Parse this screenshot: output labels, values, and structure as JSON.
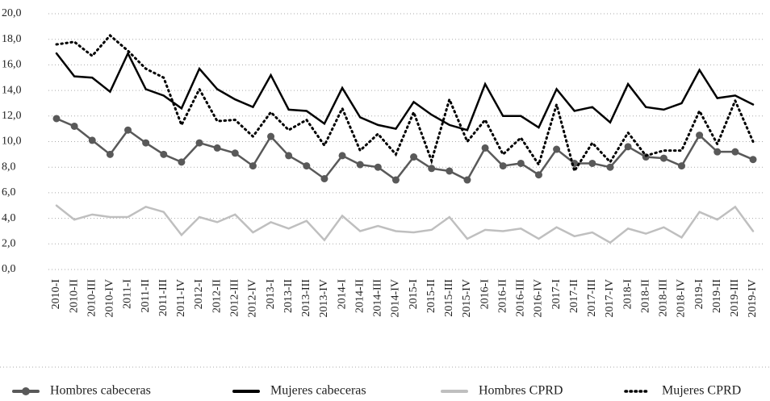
{
  "chart_data": {
    "type": "line",
    "categories": [
      "2010-I",
      "2010-II",
      "2010-III",
      "2010-IV",
      "2011-I",
      "2011-II",
      "2011-III",
      "2011-IV",
      "2012-I",
      "2012-II",
      "2012-III",
      "2012-IV",
      "2013-I",
      "2013-II",
      "2013-III",
      "2013-IV",
      "2014-I",
      "2014-II",
      "2014-III",
      "2014-IV",
      "2015-I",
      "2015-II",
      "2015-III",
      "2015-IV",
      "2016-I",
      "2016-II",
      "2016-III",
      "2016-IV",
      "2017-I",
      "2017-II",
      "2017-III",
      "2017-IV",
      "2018-I",
      "2018-II",
      "2018-III",
      "2018-IV",
      "2019-I",
      "2019-II",
      "2019-III",
      "2019-IV"
    ],
    "series": [
      {
        "name": "Hombres cabeceras",
        "color": "#595959",
        "marker": "circle",
        "line_style": "solid",
        "values": [
          11.8,
          11.2,
          10.1,
          9.0,
          10.9,
          9.9,
          9.0,
          8.4,
          9.9,
          9.5,
          9.1,
          8.1,
          10.4,
          8.9,
          8.1,
          7.1,
          8.9,
          8.2,
          8.0,
          7.0,
          8.8,
          7.9,
          7.7,
          7.0,
          9.5,
          8.1,
          8.3,
          7.4,
          9.4,
          8.3,
          8.3,
          8.0,
          9.6,
          8.8,
          8.7,
          8.1,
          10.5,
          9.2,
          9.2,
          8.6
        ]
      },
      {
        "name": "Mujeres cabeceras",
        "color": "#000000",
        "marker": "none",
        "line_style": "solid",
        "values": [
          16.9,
          15.1,
          15.0,
          13.9,
          16.9,
          14.1,
          13.6,
          12.6,
          15.7,
          14.1,
          13.3,
          12.7,
          15.2,
          12.5,
          12.4,
          11.4,
          14.2,
          11.9,
          11.3,
          11.0,
          13.1,
          12.1,
          11.3,
          10.9,
          14.5,
          12.0,
          12.0,
          11.1,
          14.1,
          12.4,
          12.7,
          11.5,
          14.5,
          12.7,
          12.5,
          13.0,
          15.6,
          13.4,
          13.6,
          12.9
        ]
      },
      {
        "name": "Hombres CPRD",
        "color": "#bfbfbf",
        "marker": "none",
        "line_style": "solid",
        "values": [
          5.0,
          3.9,
          4.3,
          4.1,
          4.1,
          4.9,
          4.5,
          2.7,
          4.1,
          3.7,
          4.3,
          2.9,
          3.7,
          3.2,
          3.8,
          2.3,
          4.2,
          3.0,
          3.4,
          3.0,
          2.9,
          3.1,
          4.1,
          2.4,
          3.1,
          3.0,
          3.2,
          2.4,
          3.3,
          2.6,
          2.9,
          2.1,
          3.2,
          2.8,
          3.3,
          2.5,
          4.5,
          3.9,
          4.9,
          3.0
        ]
      },
      {
        "name": "Mujeres CPRD",
        "color": "#000000",
        "marker": "none",
        "line_style": "dotted",
        "values": [
          17.6,
          17.8,
          16.7,
          18.3,
          17.1,
          15.7,
          15.0,
          11.3,
          14.1,
          11.6,
          11.7,
          10.4,
          12.3,
          10.9,
          11.7,
          9.7,
          12.6,
          9.3,
          10.6,
          9.0,
          12.3,
          8.5,
          13.3,
          10.0,
          11.7,
          9.0,
          10.3,
          8.2,
          12.9,
          7.7,
          9.9,
          8.4,
          10.7,
          8.9,
          9.3,
          9.3,
          12.4,
          9.8,
          13.2,
          10.0
        ]
      }
    ],
    "ylim": [
      0,
      20
    ],
    "yticks": [
      {
        "value": 0,
        "label": "0,0"
      },
      {
        "value": 2,
        "label": "2,0"
      },
      {
        "value": 4,
        "label": "4,0"
      },
      {
        "value": 6,
        "label": "6,0"
      },
      {
        "value": 8,
        "label": "8,0"
      },
      {
        "value": 10,
        "label": "10,0"
      },
      {
        "value": 12,
        "label": "12,0"
      },
      {
        "value": 14,
        "label": "14,0"
      },
      {
        "value": 16,
        "label": "16,0"
      },
      {
        "value": 18,
        "label": "18,0"
      },
      {
        "value": 20,
        "label": "20,0"
      }
    ],
    "grid": true,
    "legend": "bottom"
  }
}
